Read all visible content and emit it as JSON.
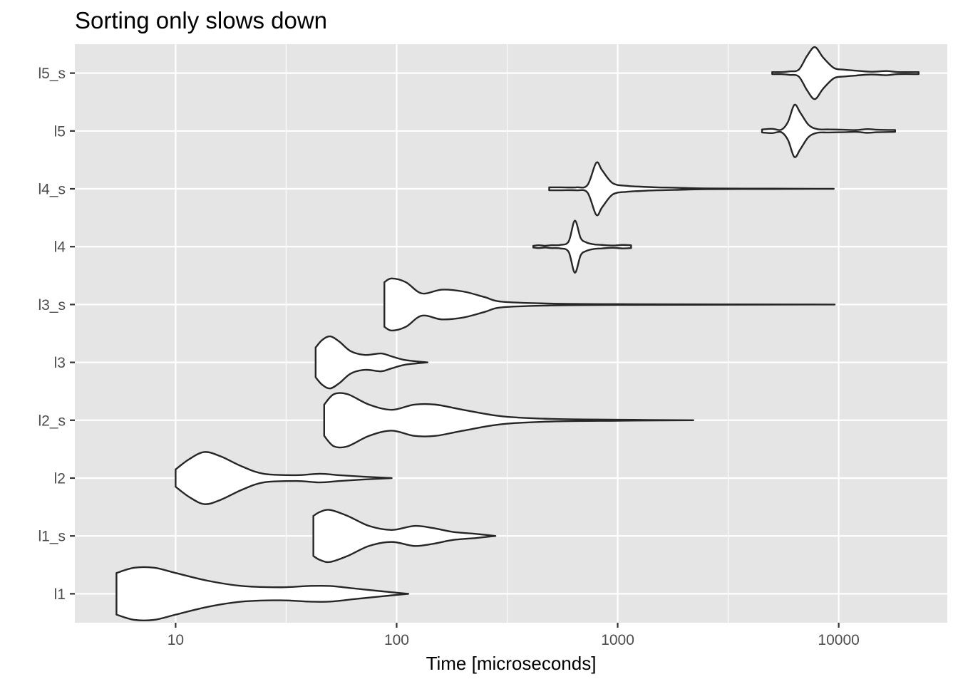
{
  "chart_data": {
    "type": "violin",
    "title": "Sorting only slows down",
    "xlabel": "Time [microseconds]",
    "ylabel": "",
    "x_scale": "log10",
    "xlim": [
      3.5,
      31000
    ],
    "x_ticks": [
      10,
      100,
      1000,
      10000
    ],
    "x_tick_labels": [
      "10",
      "100",
      "1000",
      "10000"
    ],
    "categories": [
      "l1",
      "l1_s",
      "l2",
      "l2_s",
      "l3",
      "l3_s",
      "l4",
      "l4_s",
      "l5",
      "l5_s"
    ],
    "grid": true,
    "legend": "none",
    "series": [
      {
        "category": "l1",
        "min": 5.4,
        "max": 113,
        "density": [
          [
            5.4,
            0.08
          ],
          [
            6.5,
            0.1
          ],
          [
            8,
            0.1
          ],
          [
            10,
            0.08
          ],
          [
            14,
            0.05
          ],
          [
            20,
            0.03
          ],
          [
            30,
            0.025
          ],
          [
            40,
            0.03
          ],
          [
            50,
            0.03
          ],
          [
            65,
            0.02
          ],
          [
            85,
            0.01
          ],
          [
            113,
            0
          ]
        ]
      },
      {
        "category": "l1_s",
        "min": 42,
        "max": 280,
        "density": [
          [
            42,
            0.1
          ],
          [
            45,
            0.12
          ],
          [
            50,
            0.13
          ],
          [
            60,
            0.1
          ],
          [
            75,
            0.05
          ],
          [
            95,
            0.03
          ],
          [
            120,
            0.05
          ],
          [
            145,
            0.04
          ],
          [
            180,
            0.02
          ],
          [
            230,
            0.01
          ],
          [
            280,
            0
          ]
        ]
      },
      {
        "category": "l2",
        "min": 10,
        "max": 95,
        "density": [
          [
            10,
            0.06
          ],
          [
            11.5,
            0.13
          ],
          [
            13.5,
            0.18
          ],
          [
            16,
            0.15
          ],
          [
            20,
            0.08
          ],
          [
            25,
            0.03
          ],
          [
            35,
            0.02
          ],
          [
            45,
            0.03
          ],
          [
            55,
            0.02
          ],
          [
            70,
            0.01
          ],
          [
            95,
            0
          ]
        ]
      },
      {
        "category": "l2_s",
        "min": 47,
        "max": 2200,
        "density": [
          [
            47,
            0.06
          ],
          [
            52,
            0.1
          ],
          [
            60,
            0.1
          ],
          [
            75,
            0.06
          ],
          [
            95,
            0.04
          ],
          [
            120,
            0.06
          ],
          [
            150,
            0.06
          ],
          [
            200,
            0.04
          ],
          [
            300,
            0.015
          ],
          [
            500,
            0.005
          ],
          [
            1000,
            0.002
          ],
          [
            2200,
            0
          ]
        ]
      },
      {
        "category": "l3",
        "min": 43,
        "max": 138,
        "density": [
          [
            43,
            0.2
          ],
          [
            46,
            0.3
          ],
          [
            50,
            0.35
          ],
          [
            55,
            0.28
          ],
          [
            62,
            0.15
          ],
          [
            72,
            0.1
          ],
          [
            85,
            0.12
          ],
          [
            95,
            0.08
          ],
          [
            110,
            0.03
          ],
          [
            138,
            0
          ]
        ]
      },
      {
        "category": "l3_s",
        "min": 88,
        "max": 9600,
        "density": [
          [
            88,
            0.12
          ],
          [
            95,
            0.14
          ],
          [
            110,
            0.12
          ],
          [
            130,
            0.06
          ],
          [
            160,
            0.08
          ],
          [
            200,
            0.07
          ],
          [
            250,
            0.04
          ],
          [
            300,
            0.015
          ],
          [
            500,
            0.005
          ],
          [
            1000,
            0.002
          ],
          [
            9600,
            0
          ]
        ]
      },
      {
        "category": "l4",
        "min": 415,
        "max": 1150,
        "density": [
          [
            415,
            0.03
          ],
          [
            440,
            0.05
          ],
          [
            470,
            0.03
          ],
          [
            500,
            0.05
          ],
          [
            550,
            0.06
          ],
          [
            600,
            0.18
          ],
          [
            640,
            0.9
          ],
          [
            680,
            0.3
          ],
          [
            720,
            0.15
          ],
          [
            780,
            0.08
          ],
          [
            850,
            0.06
          ],
          [
            950,
            0.04
          ],
          [
            1050,
            0.06
          ],
          [
            1150,
            0.05
          ]
        ]
      },
      {
        "category": "l4_s",
        "min": 490,
        "max": 9500,
        "density": [
          [
            490,
            0.04
          ],
          [
            550,
            0.04
          ],
          [
            650,
            0.04
          ],
          [
            730,
            0.1
          ],
          [
            800,
            0.7
          ],
          [
            850,
            0.5
          ],
          [
            950,
            0.15
          ],
          [
            1100,
            0.08
          ],
          [
            1250,
            0.06
          ],
          [
            1500,
            0.04
          ],
          [
            1800,
            0.03
          ],
          [
            2500,
            0.01
          ],
          [
            5000,
            0.005
          ],
          [
            9500,
            0
          ]
        ]
      },
      {
        "category": "l5",
        "min": 4500,
        "max": 18000,
        "density": [
          [
            4500,
            0.05
          ],
          [
            5000,
            0.07
          ],
          [
            5500,
            0.04
          ],
          [
            5900,
            0.3
          ],
          [
            6300,
            0.85
          ],
          [
            6700,
            0.6
          ],
          [
            7300,
            0.2
          ],
          [
            8000,
            0.06
          ],
          [
            9000,
            0.05
          ],
          [
            10500,
            0.04
          ],
          [
            12000,
            0.03
          ],
          [
            13500,
            0.06
          ],
          [
            15000,
            0.04
          ],
          [
            18000,
            0.03
          ]
        ]
      },
      {
        "category": "l5_s",
        "min": 5000,
        "max": 23000,
        "density": [
          [
            5000,
            0.03
          ],
          [
            5500,
            0.03
          ],
          [
            6000,
            0.05
          ],
          [
            6600,
            0.1
          ],
          [
            7200,
            0.5
          ],
          [
            7800,
            0.75
          ],
          [
            8500,
            0.45
          ],
          [
            9500,
            0.15
          ],
          [
            10500,
            0.1
          ],
          [
            12000,
            0.07
          ],
          [
            14000,
            0.04
          ],
          [
            16500,
            0.06
          ],
          [
            18500,
            0.03
          ],
          [
            23000,
            0.03
          ]
        ]
      }
    ]
  }
}
